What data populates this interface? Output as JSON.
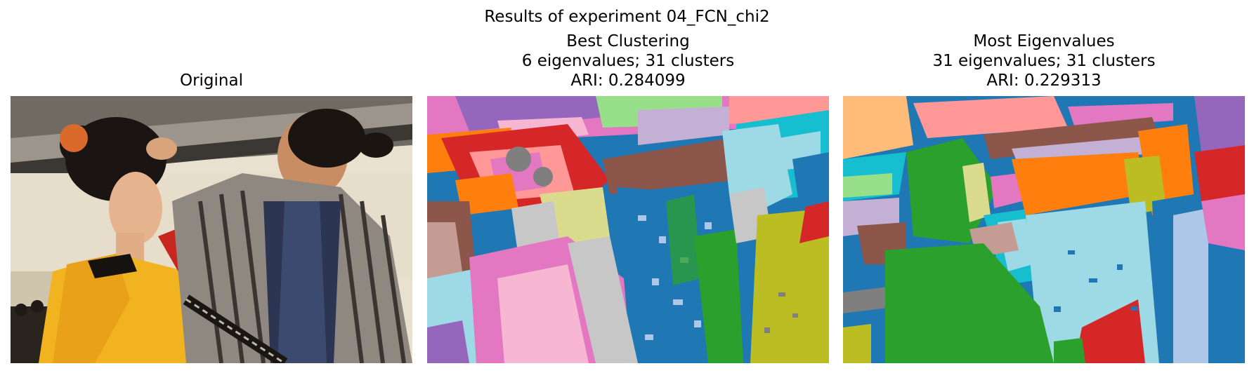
{
  "figure": {
    "title": "Results of experiment 04_FCN_chi2"
  },
  "panels": [
    {
      "title_lines": [
        "Original"
      ],
      "image": "photograph of a couple in traditional Japanese dress"
    },
    {
      "title_lines": [
        "Best Clustering",
        "6 eigenvalues; 31 clusters",
        "ARI: 0.284099"
      ],
      "image": "cluster segmentation map"
    },
    {
      "title_lines": [
        "Most Eigenvalues",
        "31 eigenvalues; 31 clusters",
        "ARI: 0.229313"
      ],
      "image": "cluster segmentation map"
    }
  ],
  "colors": {
    "tab_blue": "#1f77b4",
    "tab_orange": "#ff7f0e",
    "tab_green": "#2ca02c",
    "tab_red": "#d62728",
    "tab_purple": "#9467bd",
    "tab_brown": "#8c564b",
    "tab_pink": "#e377c2",
    "tab_gray": "#7f7f7f",
    "tab_olive": "#bcbd22",
    "tab_cyan": "#17becf"
  }
}
